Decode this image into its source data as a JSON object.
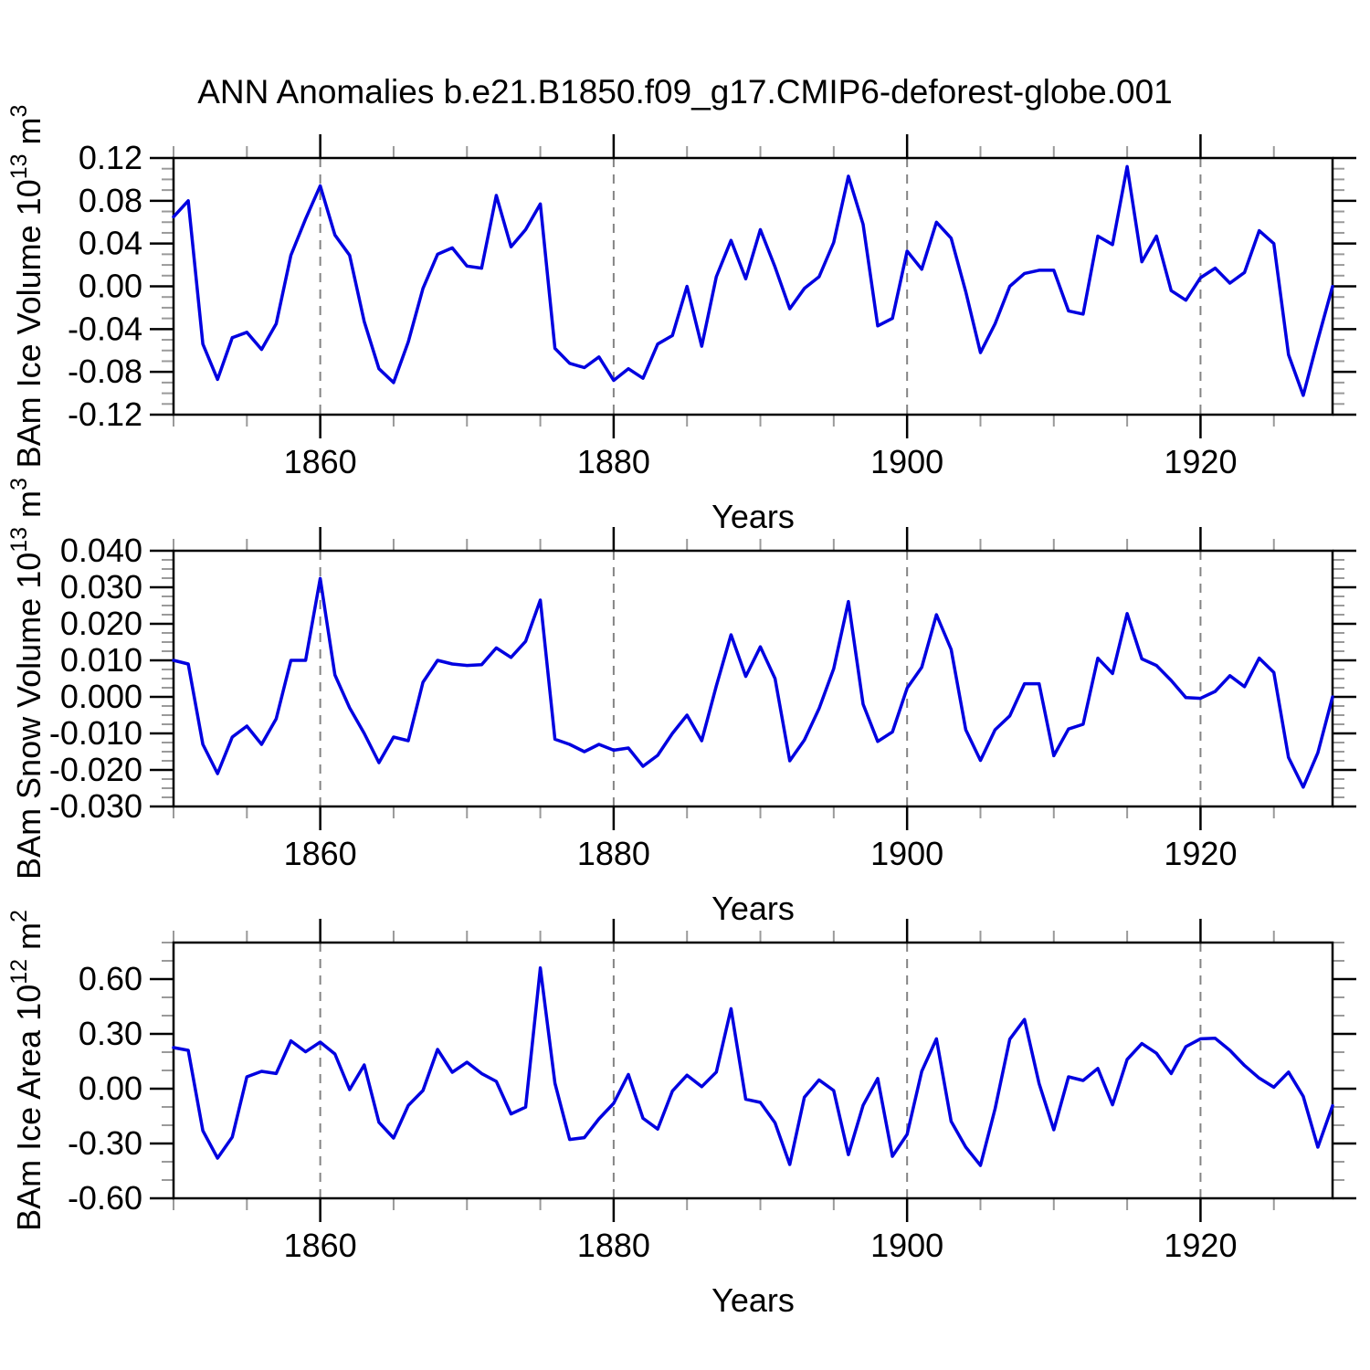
{
  "title": "ANN Anomalies b.e21.B1850.f09_g17.CMIP6-deforest-globe.001",
  "line_color": "#0000e0",
  "grid_color": "#848484",
  "minor_tick_color": "#9a9a9a",
  "axis_color": "#000000",
  "xlabel": "Years",
  "xlim": [
    1850,
    1929
  ],
  "x_major_ticks": [
    1860,
    1880,
    1900,
    1920
  ],
  "x_tick_labels": [
    "1860",
    "1880",
    "1900",
    "1920"
  ],
  "x_minor_step": 5,
  "years": [
    1850,
    1851,
    1852,
    1853,
    1854,
    1855,
    1856,
    1857,
    1858,
    1859,
    1860,
    1861,
    1862,
    1863,
    1864,
    1865,
    1866,
    1867,
    1868,
    1869,
    1870,
    1871,
    1872,
    1873,
    1874,
    1875,
    1876,
    1877,
    1878,
    1879,
    1880,
    1881,
    1882,
    1883,
    1884,
    1885,
    1886,
    1887,
    1888,
    1889,
    1890,
    1891,
    1892,
    1893,
    1894,
    1895,
    1896,
    1897,
    1898,
    1899,
    1900,
    1901,
    1902,
    1903,
    1904,
    1905,
    1906,
    1907,
    1908,
    1909,
    1910,
    1911,
    1912,
    1913,
    1914,
    1915,
    1916,
    1917,
    1918,
    1919,
    1920,
    1921,
    1922,
    1923,
    1924,
    1925,
    1926,
    1927,
    1928,
    1929
  ],
  "chart_data": [
    {
      "type": "line",
      "name": "ice-volume",
      "ylabel_parts": [
        [
          "text",
          "BAm Ice Volume 10"
        ],
        [
          "sup",
          "13"
        ],
        [
          "text",
          " m"
        ],
        [
          "sup",
          "3"
        ]
      ],
      "ylim": [
        -0.12,
        0.12
      ],
      "y_major_ticks": [
        0.12,
        0.08,
        0.04,
        0.0,
        -0.04,
        -0.08,
        -0.12
      ],
      "y_tick_labels": [
        "0.12",
        "0.08",
        "0.04",
        "0.00",
        "-0.04",
        "-0.08",
        "-0.12"
      ],
      "y_minor_step": 0.01,
      "values": [
        0.065,
        0.08,
        -0.054,
        -0.087,
        -0.048,
        -0.043,
        -0.059,
        -0.035,
        0.029,
        0.063,
        0.094,
        0.048,
        0.029,
        -0.033,
        -0.077,
        -0.09,
        -0.052,
        -0.002,
        0.03,
        0.036,
        0.019,
        0.017,
        0.085,
        0.037,
        0.053,
        0.077,
        -0.058,
        -0.072,
        -0.076,
        -0.066,
        -0.088,
        -0.077,
        -0.086,
        -0.054,
        -0.046,
        0.0,
        -0.056,
        0.009,
        0.043,
        0.007,
        0.053,
        0.018,
        -0.021,
        -0.002,
        0.009,
        0.041,
        0.103,
        0.058,
        -0.037,
        -0.03,
        0.033,
        0.016,
        0.06,
        0.045,
        -0.005,
        -0.062,
        -0.035,
        0.0,
        0.012,
        0.015,
        0.015,
        -0.023,
        -0.026,
        0.047,
        0.039,
        0.112,
        0.023,
        0.047,
        -0.004,
        -0.013,
        0.008,
        0.017,
        0.003,
        0.013,
        0.052,
        0.04,
        -0.064,
        -0.102,
        -0.05,
        0.0
      ]
    },
    {
      "type": "line",
      "name": "snow-volume",
      "ylabel_parts": [
        [
          "text",
          "BAm Snow Volume 10"
        ],
        [
          "sup",
          "13"
        ],
        [
          "text",
          " m"
        ],
        [
          "sup",
          "3"
        ]
      ],
      "ylim": [
        -0.03,
        0.04
      ],
      "y_major_ticks": [
        0.04,
        0.03,
        0.02,
        0.01,
        0.0,
        -0.01,
        -0.02,
        -0.03
      ],
      "y_tick_labels": [
        "0.040",
        "0.030",
        "0.020",
        "0.010",
        "0.000",
        "-0.010",
        "-0.020",
        "-0.030"
      ],
      "y_minor_step": 0.0025,
      "values": [
        0.01,
        0.009,
        -0.013,
        -0.021,
        -0.011,
        -0.008,
        -0.013,
        -0.006,
        0.01,
        0.01,
        0.0324,
        0.006,
        -0.003,
        -0.01,
        -0.018,
        -0.011,
        -0.012,
        0.004,
        0.01,
        0.009,
        0.0086,
        0.0088,
        0.0134,
        0.0108,
        0.0152,
        0.0265,
        -0.0116,
        -0.013,
        -0.015,
        -0.013,
        -0.0146,
        -0.014,
        -0.019,
        -0.016,
        -0.01,
        -0.005,
        -0.012,
        0.003,
        0.017,
        0.0056,
        0.0137,
        0.005,
        -0.0175,
        -0.0118,
        -0.0032,
        0.0077,
        0.0261,
        -0.002,
        -0.0122,
        -0.0096,
        0.0024,
        0.0081,
        0.0225,
        0.013,
        -0.009,
        -0.0174,
        -0.009,
        -0.0052,
        0.0036,
        0.0036,
        -0.0161,
        -0.0088,
        -0.0075,
        0.0106,
        0.0064,
        0.0228,
        0.0104,
        0.0086,
        0.0045,
        -0.0002,
        -0.0004,
        0.0015,
        0.0058,
        0.0028,
        0.0106,
        0.0067,
        -0.0166,
        -0.0247,
        -0.0153,
        0.0
      ]
    },
    {
      "type": "line",
      "name": "ice-area",
      "ylabel_parts": [
        [
          "text",
          "BAm Ice Area 10"
        ],
        [
          "sup",
          "12"
        ],
        [
          "text",
          " m"
        ],
        [
          "sup",
          "2"
        ]
      ],
      "ylim": [
        -0.6,
        0.8
      ],
      "y_major_ticks": [
        0.6,
        0.3,
        0.0,
        -0.3,
        -0.6
      ],
      "y_tick_labels": [
        "0.60",
        "0.30",
        "0.00",
        "-0.30",
        "-0.60"
      ],
      "y_minor_step": 0.1,
      "values": [
        0.225,
        0.21,
        -0.23,
        -0.38,
        -0.265,
        0.065,
        0.095,
        0.083,
        0.262,
        0.202,
        0.255,
        0.19,
        -0.005,
        0.13,
        -0.184,
        -0.27,
        -0.092,
        -0.01,
        0.215,
        0.09,
        0.145,
        0.083,
        0.04,
        -0.138,
        -0.101,
        0.661,
        0.03,
        -0.278,
        -0.268,
        -0.165,
        -0.08,
        0.078,
        -0.162,
        -0.221,
        -0.013,
        0.074,
        0.011,
        0.091,
        0.438,
        -0.058,
        -0.075,
        -0.187,
        -0.415,
        -0.047,
        0.048,
        -0.01,
        -0.361,
        -0.091,
        0.056,
        -0.37,
        -0.25,
        0.095,
        0.273,
        -0.179,
        -0.32,
        -0.42,
        -0.11,
        0.271,
        0.379,
        0.028,
        -0.225,
        0.065,
        0.045,
        0.111,
        -0.088,
        0.16,
        0.247,
        0.194,
        0.083,
        0.23,
        0.273,
        0.276,
        0.21,
        0.127,
        0.058,
        0.008,
        0.091,
        -0.042,
        -0.32,
        -0.093
      ]
    }
  ]
}
